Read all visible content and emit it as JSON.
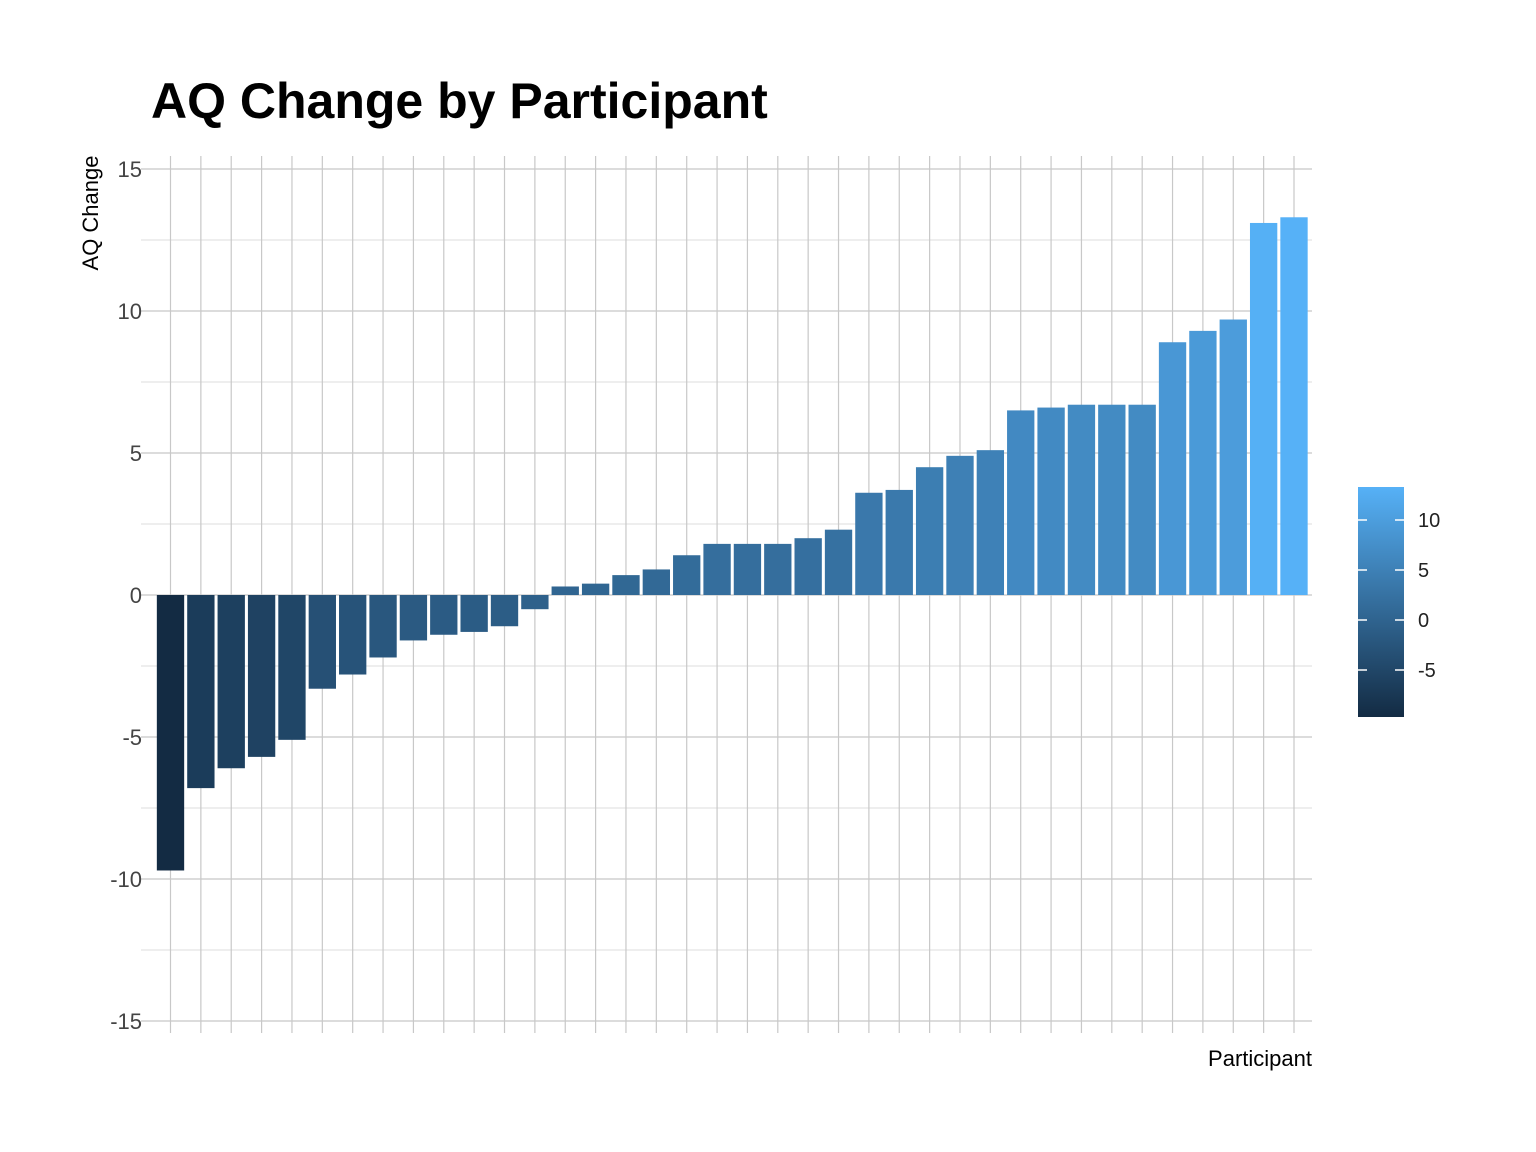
{
  "chart_data": {
    "type": "bar",
    "title": "AQ Change by Participant",
    "xlabel": "Participant",
    "ylabel": "AQ Change",
    "ylim": [
      -15,
      15
    ],
    "yticks": [
      -15,
      -10,
      -5,
      0,
      5,
      10,
      15
    ],
    "ytick_labels": [
      "-15",
      "-10",
      "-5",
      "0",
      "5",
      "10",
      "15"
    ],
    "grid": true,
    "x_tick_labels_shown": false,
    "values": [
      -9.7,
      -6.8,
      -6.1,
      -5.7,
      -5.1,
      -3.3,
      -2.8,
      -2.2,
      -1.6,
      -1.4,
      -1.3,
      -1.1,
      -0.5,
      0.3,
      0.4,
      0.7,
      0.9,
      1.4,
      1.8,
      1.8,
      1.8,
      2.0,
      2.3,
      3.6,
      3.7,
      4.5,
      4.9,
      5.1,
      6.5,
      6.6,
      6.7,
      6.7,
      6.7,
      8.9,
      9.3,
      9.7,
      13.1,
      13.3
    ],
    "fill_scale": {
      "type": "continuous",
      "low_color": "#132B43",
      "high_color": "#56B1F7",
      "domain": [
        -9.7,
        13.3
      ],
      "legend_ticks": [
        10,
        5,
        0,
        -5
      ],
      "legend_tick_labels": [
        "10",
        "5",
        "0",
        "-5"
      ],
      "legend_position": "right"
    }
  }
}
